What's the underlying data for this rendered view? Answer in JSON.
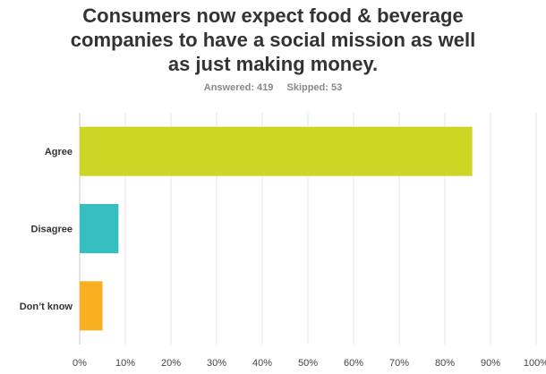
{
  "header": {
    "title_lines": [
      "Consumers now expect food & beverage",
      "companies to have a social mission as well",
      "as just making money."
    ],
    "answered": "Answered: 419",
    "skipped": "Skipped: 53"
  },
  "chart_data": {
    "type": "bar",
    "orientation": "horizontal",
    "categories": [
      "Agree",
      "Disagree",
      "Don’t know"
    ],
    "values": [
      86,
      8.5,
      5
    ],
    "colors": [
      "#cdd624",
      "#35bfc0",
      "#f8b020"
    ],
    "xlim": [
      0,
      100
    ],
    "xticks": [
      "0%",
      "10%",
      "20%",
      "30%",
      "40%",
      "50%",
      "60%",
      "70%",
      "80%",
      "90%",
      "100%"
    ],
    "grid": true
  }
}
